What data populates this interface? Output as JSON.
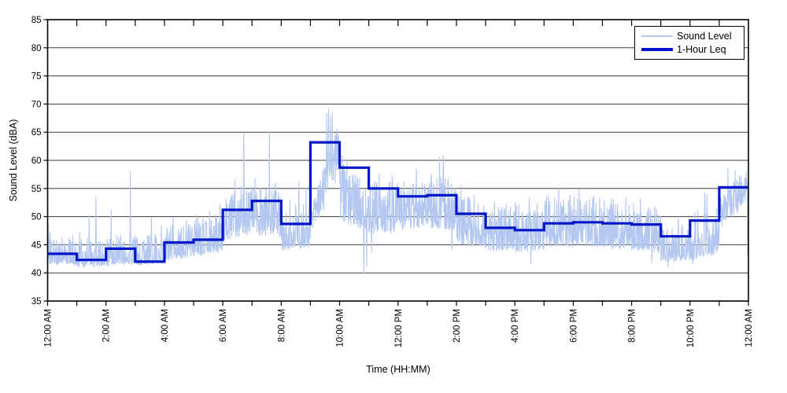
{
  "figure": {
    "background": "#ffffff",
    "axis_color": "#000000",
    "gridline_color": "#3c3c3c"
  },
  "legend": {
    "position": "top-right",
    "items": [
      {
        "label": "Sound Level",
        "color": "#b3c7f0",
        "line": "thin"
      },
      {
        "label": "1-Hour Leq",
        "color": "#0016c8",
        "line": "thick"
      }
    ]
  },
  "chart_data": {
    "type": "line",
    "title": "",
    "xlabel": "Time (HH:MM)",
    "ylabel": "Sound Level (dBA)",
    "ylim": [
      35,
      85
    ],
    "xlim_hours": [
      0,
      24
    ],
    "y_ticks": [
      35,
      40,
      45,
      50,
      55,
      60,
      65,
      70,
      75,
      80,
      85
    ],
    "x_tick_step_hours": 2,
    "x_tick_labels": [
      "12:00 AM",
      "2:00 AM",
      "4:00 AM",
      "6:00 AM",
      "8:00 AM",
      "10:00 AM",
      "12:00 PM",
      "2:00 PM",
      "4:00 PM",
      "6:00 PM",
      "8:00 PM",
      "10:00 PM",
      "12:00 AM"
    ],
    "grid": "horizontal",
    "legend_position": "top-right",
    "series": [
      {
        "name": "Sound Level",
        "color": "#b3c7f0",
        "style": "noisy fast (approx. 1-second) trace, procedurally approximated from per-hour bands",
        "hourly_profile": [
          {
            "hour": 0,
            "lo": [
              41.7,
              41.6
            ],
            "hi": [
              46.5,
              46.5
            ],
            "bias": 2.6
          },
          {
            "hour": 1,
            "lo": [
              41.2,
              41.4
            ],
            "hi": [
              46.0,
              46.0
            ],
            "bias": 2.8
          },
          {
            "hour": 2,
            "lo": [
              41.5,
              41.8
            ],
            "hi": [
              46.5,
              46.5
            ],
            "bias": 2.6
          },
          {
            "hour": 3,
            "lo": [
              41.6,
              42.0
            ],
            "hi": [
              47.0,
              47.0
            ],
            "bias": 2.6
          },
          {
            "hour": 4,
            "lo": [
              42.4,
              43.2
            ],
            "hi": [
              48.5,
              49.0
            ],
            "bias": 2.2
          },
          {
            "hour": 5,
            "lo": [
              42.8,
              44.0
            ],
            "hi": [
              49.5,
              50.5
            ],
            "bias": 2.0
          },
          {
            "hour": 6,
            "lo": [
              45.8,
              47.2
            ],
            "hi": [
              54.5,
              55.5
            ],
            "bias": 1.7
          },
          {
            "hour": 7,
            "lo": [
              46.5,
              46.8
            ],
            "hi": [
              55.5,
              55.5
            ],
            "bias": 1.7
          },
          {
            "hour": 8,
            "lo": [
              44.3,
              44.8
            ],
            "hi": [
              51.5,
              53.0
            ],
            "bias": 2.0
          },
          {
            "hour": 9,
            "lo": [
              46.5,
              57.5
            ],
            "hi": [
              51.0,
              67.5
            ],
            "bias": 0.75
          },
          {
            "hour": 10,
            "lo": [
              49.5,
              47.5
            ],
            "hi": [
              60.0,
              57.0
            ],
            "bias": 1.35
          },
          {
            "hour": 11,
            "lo": [
              47.0,
              47.5
            ],
            "hi": [
              56.5,
              56.5
            ],
            "bias": 1.5
          },
          {
            "hour": 12,
            "lo": [
              47.8,
              48.2
            ],
            "hi": [
              56.5,
              56.5
            ],
            "bias": 1.6
          },
          {
            "hour": 13,
            "lo": [
              48.0,
              47.5
            ],
            "hi": [
              57.5,
              57.0
            ],
            "bias": 1.5
          },
          {
            "hour": 14,
            "lo": [
              45.3,
              44.8
            ],
            "hi": [
              54.0,
              53.5
            ],
            "bias": 1.9
          },
          {
            "hour": 15,
            "lo": [
              44.2,
              44.2
            ],
            "hi": [
              52.0,
              52.0
            ],
            "bias": 2.0
          },
          {
            "hour": 16,
            "lo": [
              43.9,
              44.2
            ],
            "hi": [
              52.5,
              52.5
            ],
            "bias": 2.0
          },
          {
            "hour": 17,
            "lo": [
              44.8,
              44.8
            ],
            "hi": [
              54.0,
              54.0
            ],
            "bias": 1.9
          },
          {
            "hour": 18,
            "lo": [
              44.8,
              44.8
            ],
            "hi": [
              53.5,
              53.5
            ],
            "bias": 1.9
          },
          {
            "hour": 19,
            "lo": [
              44.6,
              44.4
            ],
            "hi": [
              53.0,
              53.0
            ],
            "bias": 2.0
          },
          {
            "hour": 20,
            "lo": [
              44.3,
              43.8
            ],
            "hi": [
              53.0,
              52.5
            ],
            "bias": 2.0
          },
          {
            "hour": 21,
            "lo": [
              42.3,
              42.4
            ],
            "hi": [
              48.5,
              48.5
            ],
            "bias": 2.3
          },
          {
            "hour": 22,
            "lo": [
              42.4,
              43.8
            ],
            "hi": [
              51.0,
              52.0
            ],
            "bias": 2.1
          },
          {
            "hour": 23,
            "lo": [
              47.5,
              53.0
            ],
            "hi": [
              54.0,
              58.5
            ],
            "bias": 0.9
          }
        ],
        "notable_events": [
          {
            "t": 0.03,
            "v": 48.6
          },
          {
            "t": 0.08,
            "v": 47.3
          },
          {
            "t": 1.1,
            "v": 47.2
          },
          {
            "t": 1.42,
            "v": 50.2
          },
          {
            "t": 1.65,
            "v": 53.4
          },
          {
            "t": 2.18,
            "v": 51.2
          },
          {
            "t": 2.83,
            "v": 58.0
          },
          {
            "t": 3.55,
            "v": 49.8
          },
          {
            "t": 3.9,
            "v": 48.4
          },
          {
            "t": 4.3,
            "v": 49.8
          },
          {
            "t": 4.75,
            "v": 49.3
          },
          {
            "t": 5.1,
            "v": 50.3
          },
          {
            "t": 5.55,
            "v": 51.0
          },
          {
            "t": 5.9,
            "v": 52.2
          },
          {
            "t": 6.42,
            "v": 56.6
          },
          {
            "t": 6.72,
            "v": 64.9
          },
          {
            "t": 7.1,
            "v": 56.8
          },
          {
            "t": 7.6,
            "v": 65.1
          },
          {
            "t": 7.8,
            "v": 56.0
          },
          {
            "t": 8.3,
            "v": 53.0
          },
          {
            "t": 8.6,
            "v": 56.3
          },
          {
            "t": 8.85,
            "v": 55.0
          },
          {
            "t": 9.55,
            "v": 68.3
          },
          {
            "t": 9.62,
            "v": 69.2
          },
          {
            "t": 9.68,
            "v": 67.8
          },
          {
            "t": 9.75,
            "v": 68.6
          },
          {
            "t": 10.08,
            "v": 60.8
          },
          {
            "t": 10.25,
            "v": 60.2
          },
          {
            "t": 10.83,
            "v": 39.8
          },
          {
            "t": 10.93,
            "v": 41.2
          },
          {
            "t": 11.1,
            "v": 43.6
          },
          {
            "t": 11.35,
            "v": 57.6
          },
          {
            "t": 11.8,
            "v": 57.4
          },
          {
            "t": 12.2,
            "v": 56.2
          },
          {
            "t": 12.63,
            "v": 58.4
          },
          {
            "t": 13.42,
            "v": 60.5
          },
          {
            "t": 13.55,
            "v": 60.8
          },
          {
            "t": 13.85,
            "v": 44.2
          },
          {
            "t": 14.15,
            "v": 55.4
          },
          {
            "t": 14.6,
            "v": 53.8
          },
          {
            "t": 15.3,
            "v": 52.6
          },
          {
            "t": 15.7,
            "v": 52.2
          },
          {
            "t": 16.5,
            "v": 53.4
          },
          {
            "t": 16.55,
            "v": 41.6
          },
          {
            "t": 17.15,
            "v": 53.8
          },
          {
            "t": 17.5,
            "v": 55.2
          },
          {
            "t": 18.2,
            "v": 54.8
          },
          {
            "t": 18.7,
            "v": 53.6
          },
          {
            "t": 19.3,
            "v": 53.2
          },
          {
            "t": 19.8,
            "v": 53.4
          },
          {
            "t": 20.3,
            "v": 53.2
          },
          {
            "t": 20.7,
            "v": 41.9
          },
          {
            "t": 21.25,
            "v": 41.0
          },
          {
            "t": 21.6,
            "v": 49.6
          },
          {
            "t": 22.1,
            "v": 41.6
          },
          {
            "t": 22.5,
            "v": 54.2
          },
          {
            "t": 22.58,
            "v": 53.9
          },
          {
            "t": 23.3,
            "v": 58.6
          },
          {
            "t": 23.55,
            "v": 58.2
          },
          {
            "t": 23.97,
            "v": 43.2
          }
        ]
      },
      {
        "name": "1-Hour Leq",
        "color": "#0016c8",
        "line_style": "step",
        "hour_starts": [
          0,
          1,
          2,
          3,
          4,
          5,
          6,
          7,
          8,
          9,
          10,
          11,
          12,
          13,
          14,
          15,
          16,
          17,
          18,
          19,
          20,
          21,
          22,
          23
        ],
        "values": [
          43.4,
          42.3,
          44.3,
          42.0,
          45.4,
          45.9,
          51.2,
          52.8,
          48.7,
          63.2,
          58.7,
          55.0,
          53.6,
          53.8,
          50.5,
          48.0,
          47.6,
          48.8,
          49.0,
          48.8,
          48.6,
          46.5,
          49.3,
          55.2
        ]
      }
    ]
  }
}
